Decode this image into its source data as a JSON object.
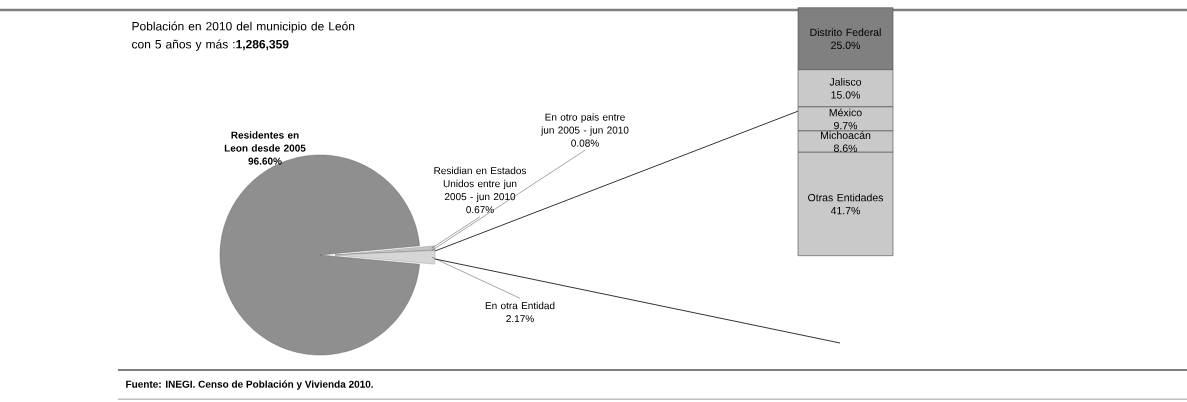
{
  "chart_data": [
    {
      "type": "pie",
      "title": "Población en 2010 del municipio de León con 5   años y más :**1,286,359**",
      "categories": [
        "**Residentes en Leon desde 2005**",
        "Residian en Estados Unidos entre jun 2005 - jun 2010",
        "En otro pais entre jun 2005 - jun 2010",
        "En otra Entidad"
      ],
      "values": [
        96.6,
        0.67,
        0.08,
        2.17
      ],
      "value_labels": [
        "**96.60%**",
        "0.67%",
        "0.08%",
        "2.17%"
      ],
      "colors": [
        "#8f8f8f",
        "#c4c4c4",
        "#a6a6a6",
        "#d6d6d6"
      ],
      "annotations": [
        "**Fuente: INEGI. Censo de Población y Vivienda 2010.**"
      ]
    },
    {
      "type": "bar",
      "stacked": true,
      "categories": [
        null
      ],
      "series": [
        {
          "name": "Otras Entidades",
          "color": "#c9c9c9",
          "values": [
            41.7
          ],
          "value_labels": [
            "41.7%"
          ]
        },
        {
          "name": "Michoacán",
          "color": "#c9c9c9",
          "values": [
            8.6
          ],
          "value_labels": [
            "8.6%"
          ]
        },
        {
          "name": "México",
          "color": "#c9c9c9",
          "values": [
            9.7
          ],
          "value_labels": [
            "9.7%"
          ]
        },
        {
          "name": "Jalisco",
          "color": "#c9c9c9",
          "values": [
            15.0
          ],
          "value_labels": [
            "15.0%"
          ]
        },
        {
          "name": "Distrito Federal",
          "color": "#808080",
          "values": [
            25.0
          ],
          "value_labels": [
            "25.0%"
          ]
        }
      ]
    }
  ]
}
